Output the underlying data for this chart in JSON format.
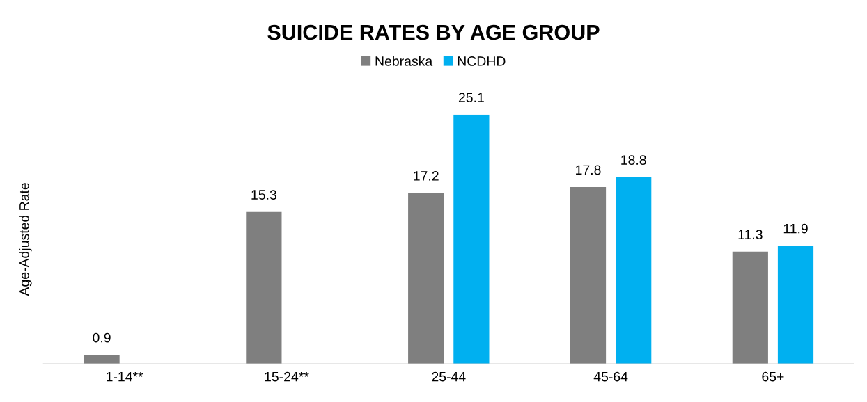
{
  "chart_data": {
    "type": "bar",
    "title": "SUICIDE RATES BY AGE GROUP",
    "ylabel": "Age-Adjusted Rate",
    "categories": [
      "1-14**",
      "15-24**",
      "25-44",
      "45-64",
      "65+"
    ],
    "series": [
      {
        "name": "Nebraska",
        "color": "#7f7f7f",
        "values": [
          0.9,
          15.3,
          17.2,
          17.8,
          11.3
        ]
      },
      {
        "name": "NCDHD",
        "color": "#00b0f0",
        "values": [
          null,
          null,
          25.1,
          18.8,
          11.9
        ]
      }
    ],
    "data_labels": true,
    "legend": "top",
    "grid": false,
    "tick_labels": "x"
  }
}
